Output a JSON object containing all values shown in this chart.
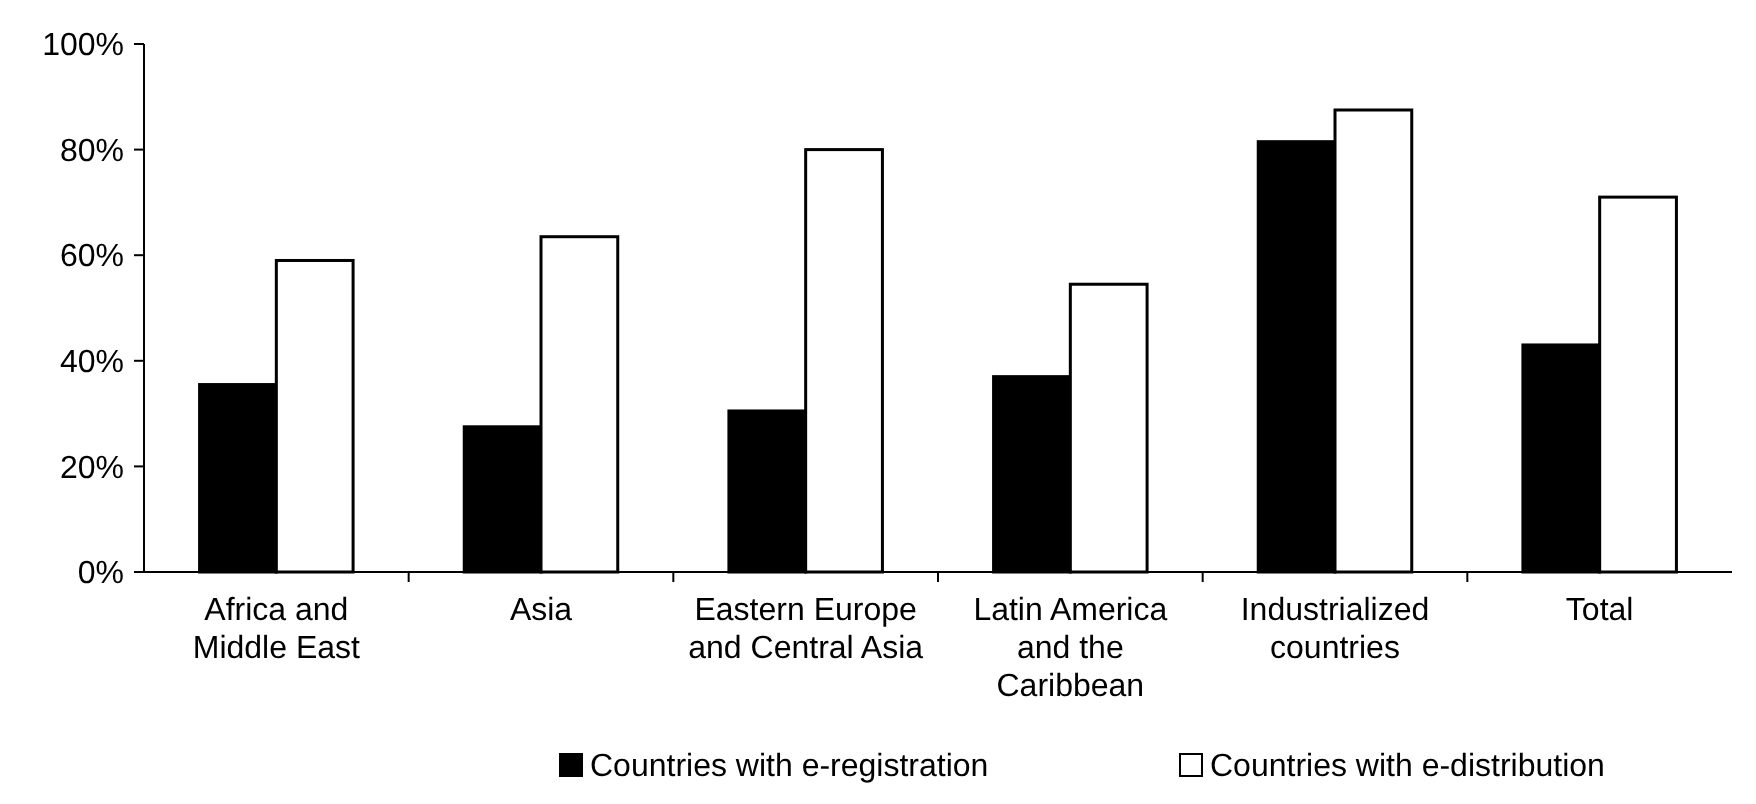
{
  "chart_data": {
    "type": "bar",
    "categories": [
      "Africa and Middle East",
      "Asia",
      "Eastern Europe and Central Asia",
      "Latin America and the Caribbean",
      "Industrialized countries",
      "Total"
    ],
    "series": [
      {
        "name": "Countries with e-registration",
        "color": "#000000",
        "values": [
          35.5,
          27.5,
          30.5,
          37,
          81.5,
          43
        ]
      },
      {
        "name": "Countries with e-distribution",
        "color": "#ffffff",
        "values": [
          59,
          63.5,
          80,
          54.5,
          87.5,
          71
        ]
      }
    ],
    "ylim": [
      0,
      100
    ],
    "yticks": [
      {
        "value": 0,
        "label": "0%"
      },
      {
        "value": 20,
        "label": "20%"
      },
      {
        "value": 40,
        "label": "40%"
      },
      {
        "value": 60,
        "label": "60%"
      },
      {
        "value": 80,
        "label": "80%"
      },
      {
        "value": 100,
        "label": "100%"
      }
    ],
    "grid": false,
    "legend": "bottom"
  }
}
